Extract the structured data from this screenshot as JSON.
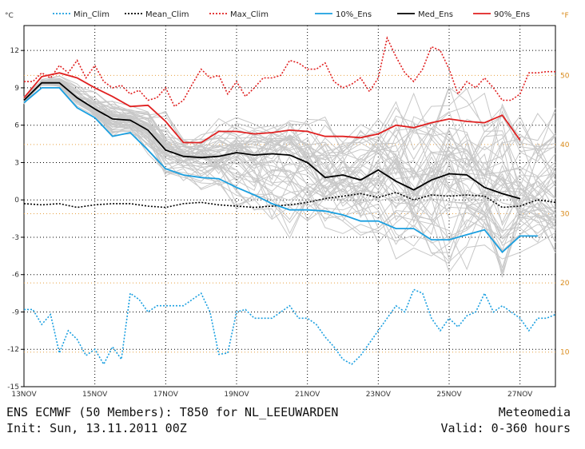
{
  "chart_data": {
    "type": "line",
    "title": "ENS ECMWF (50 Members): T850 for NL_LEEUWARDEN",
    "provider": "Meteomedia",
    "init": "Init: Sun, 13.11.2011 00Z",
    "valid": "Valid: 0-360 hours",
    "y_unit_left": "°C",
    "y_unit_right": "°F",
    "ylim": [
      -15,
      14
    ],
    "xlim_hours": [
      0,
      360
    ],
    "x_tick_labels": [
      "13NOV",
      "15NOV",
      "17NOV",
      "19NOV",
      "21NOV",
      "23NOV",
      "25NOV",
      "27NOV"
    ],
    "y_ticks_c": [
      12,
      9,
      6,
      3,
      0,
      -3,
      -6,
      -9,
      -12,
      -15
    ],
    "y_ticks_f": [
      50,
      40,
      30,
      20,
      10
    ],
    "legend": [
      {
        "name": "Min_Clim",
        "color": "#1a9fe0",
        "style": "dotted"
      },
      {
        "name": "Mean_Clim",
        "color": "#000000",
        "style": "dotted"
      },
      {
        "name": "Max_Clim",
        "color": "#e02020",
        "style": "dotted"
      },
      {
        "name": "10%_Ens",
        "color": "#1a9fe0",
        "style": "solid"
      },
      {
        "name": "Med_Ens",
        "color": "#000000",
        "style": "solid"
      },
      {
        "name": "90%_Ens",
        "color": "#e02020",
        "style": "solid"
      }
    ],
    "series": [
      {
        "name": "Max_Clim",
        "hours": [
          0,
          6,
          12,
          18,
          24,
          30,
          36,
          42,
          48,
          54,
          60,
          66,
          72,
          78,
          84,
          90,
          96,
          102,
          108,
          114,
          120,
          126,
          132,
          138,
          144,
          150,
          156,
          162,
          168,
          174,
          180,
          186,
          192,
          198,
          204,
          210,
          216,
          222,
          228,
          234,
          240,
          246,
          252,
          258,
          264,
          270,
          276,
          282,
          288,
          294,
          300,
          306,
          312,
          318,
          324,
          330,
          336,
          342,
          348,
          354,
          360
        ],
        "values": [
          9.5,
          9.5,
          10.2,
          9.8,
          10.8,
          10.2,
          11.2,
          9.8,
          10.8,
          9.5,
          9.0,
          9.2,
          8.5,
          8.8,
          8.0,
          8.2,
          9.0,
          7.5,
          8.0,
          9.3,
          10.5,
          9.8,
          10.0,
          8.5,
          9.5,
          8.3,
          9.0,
          9.8,
          9.8,
          10.0,
          11.2,
          11.0,
          10.5,
          10.5,
          11.0,
          9.5,
          9.0,
          9.3,
          9.8,
          8.7,
          9.8,
          13.0,
          11.5,
          10.2,
          9.5,
          10.5,
          12.3,
          12.0,
          10.5,
          8.5,
          9.5,
          9.0,
          9.8,
          9.0,
          8.0,
          8.0,
          8.5,
          10.2,
          10.2,
          10.3,
          10.3
        ]
      },
      {
        "name": "Min_Clim",
        "hours": [
          0,
          6,
          12,
          18,
          24,
          30,
          36,
          42,
          48,
          54,
          60,
          66,
          72,
          78,
          84,
          90,
          96,
          102,
          108,
          114,
          120,
          126,
          132,
          138,
          144,
          150,
          156,
          162,
          168,
          174,
          180,
          186,
          192,
          198,
          204,
          210,
          216,
          222,
          228,
          234,
          240,
          246,
          252,
          258,
          264,
          270,
          276,
          282,
          288,
          294,
          300,
          306,
          312,
          318,
          324,
          330,
          336,
          342,
          348,
          354,
          360
        ],
        "values": [
          -8.8,
          -8.8,
          -10.0,
          -9.2,
          -12.3,
          -10.5,
          -11.2,
          -12.5,
          -12.0,
          -13.2,
          -11.8,
          -12.8,
          -7.5,
          -8.0,
          -9.0,
          -8.5,
          -8.5,
          -8.5,
          -8.5,
          -8.0,
          -7.5,
          -9.0,
          -12.4,
          -12.3,
          -9.0,
          -8.8,
          -9.5,
          -9.5,
          -9.5,
          -9.0,
          -8.5,
          -9.5,
          -9.5,
          -10.0,
          -11.0,
          -11.8,
          -12.8,
          -13.2,
          -12.5,
          -11.5,
          -10.5,
          -9.5,
          -8.5,
          -9.0,
          -7.2,
          -7.5,
          -9.5,
          -10.5,
          -9.5,
          -10.2,
          -9.3,
          -9.0,
          -7.5,
          -9.0,
          -8.5,
          -9.0,
          -9.5,
          -10.5,
          -9.5,
          -9.5,
          -9.2
        ]
      },
      {
        "name": "Mean_Clim",
        "hours": [
          0,
          12,
          24,
          36,
          48,
          60,
          72,
          84,
          96,
          108,
          120,
          132,
          144,
          156,
          168,
          180,
          192,
          204,
          216,
          228,
          240,
          252,
          264,
          276,
          288,
          300,
          312,
          324,
          336,
          348,
          360
        ],
        "values": [
          -0.3,
          -0.4,
          -0.3,
          -0.6,
          -0.4,
          -0.3,
          -0.3,
          -0.5,
          -0.6,
          -0.3,
          -0.2,
          -0.4,
          -0.5,
          -0.6,
          -0.5,
          -0.4,
          -0.2,
          0.1,
          0.3,
          0.5,
          0.2,
          0.6,
          0.0,
          0.4,
          0.3,
          0.4,
          0.3,
          -0.6,
          -0.5,
          0.0,
          -0.2
        ]
      },
      {
        "name": "90%_Ens",
        "hours": [
          0,
          12,
          24,
          36,
          48,
          60,
          72,
          84,
          96,
          108,
          120,
          132,
          144,
          156,
          168,
          180,
          192,
          204,
          216,
          228,
          240,
          252,
          264,
          276,
          288,
          300,
          312,
          324,
          336
        ],
        "values": [
          8.2,
          9.9,
          10.2,
          9.8,
          9.0,
          8.3,
          7.5,
          7.6,
          6.3,
          4.6,
          4.6,
          5.5,
          5.5,
          5.3,
          5.4,
          5.6,
          5.5,
          5.1,
          5.1,
          5.0,
          5.3,
          6.0,
          5.8,
          6.2,
          6.5,
          6.3,
          6.2,
          6.8,
          4.8
        ]
      },
      {
        "name": "Med_Ens",
        "hours": [
          0,
          12,
          24,
          36,
          48,
          60,
          72,
          84,
          96,
          108,
          120,
          132,
          144,
          156,
          168,
          180,
          192,
          204,
          216,
          228,
          240,
          252,
          264,
          276,
          288,
          300,
          312,
          324,
          336
        ],
        "values": [
          8.0,
          9.4,
          9.4,
          8.2,
          7.3,
          6.5,
          6.4,
          5.6,
          4.0,
          3.5,
          3.4,
          3.5,
          3.8,
          3.6,
          3.7,
          3.6,
          3.0,
          1.8,
          2.0,
          1.6,
          2.4,
          1.5,
          0.8,
          1.6,
          2.1,
          2.0,
          1.0,
          0.5,
          0.1
        ]
      },
      {
        "name": "10%_Ens",
        "hours": [
          0,
          12,
          24,
          36,
          48,
          60,
          72,
          84,
          96,
          108,
          120,
          132,
          144,
          156,
          168,
          180,
          192,
          204,
          216,
          228,
          240,
          252,
          264,
          276,
          288,
          300,
          312,
          324,
          336,
          348
        ],
        "values": [
          7.8,
          9.0,
          9.0,
          7.4,
          6.6,
          5.1,
          5.4,
          4.0,
          2.5,
          2.0,
          1.8,
          1.7,
          1.0,
          0.4,
          -0.3,
          -0.8,
          -0.8,
          -0.9,
          -1.2,
          -1.7,
          -1.7,
          -2.3,
          -2.3,
          -3.2,
          -3.2,
          -2.8,
          -2.4,
          -4.2,
          -2.9,
          -2.9
        ]
      }
    ]
  }
}
